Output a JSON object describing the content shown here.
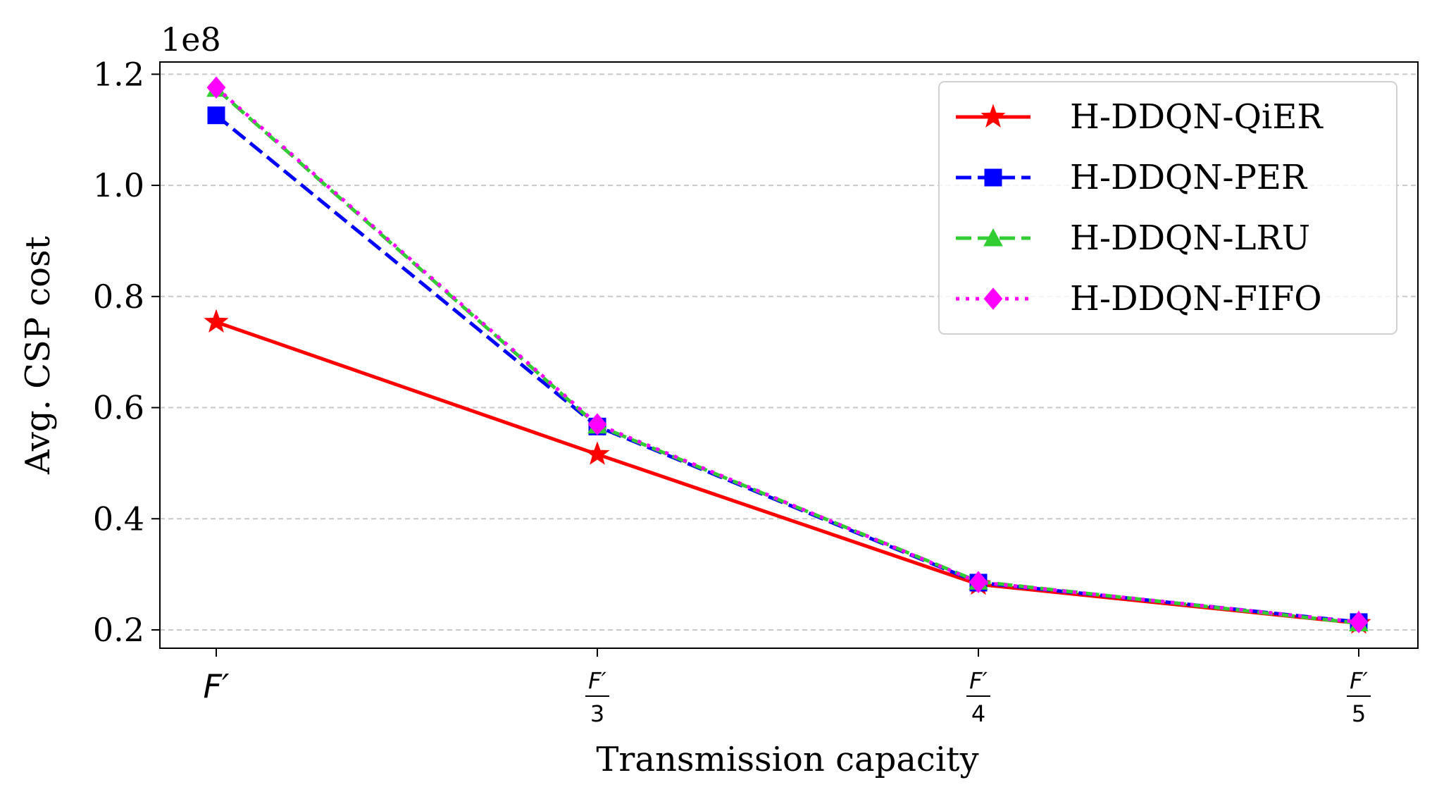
{
  "chart_data": {
    "type": "line",
    "xlabel": "Transmission capacity",
    "ylabel": "Avg. CSP cost",
    "y_offset_label": "1e8",
    "x_ticks": [
      {
        "num": "F′",
        "den": ""
      },
      {
        "num": "F′",
        "den": "3"
      },
      {
        "num": "F′",
        "den": "4"
      },
      {
        "num": "F′",
        "den": "5"
      }
    ],
    "y_ticks": [
      0.2,
      0.4,
      0.6,
      0.8,
      1.0,
      1.2
    ],
    "y_tick_labels": [
      "0.2",
      "0.4",
      "0.6",
      "0.8",
      "1.0",
      "1.2"
    ],
    "ylim": [
      0.167,
      1.222
    ],
    "grid": "horizontal dashed",
    "legend_position": "top-right",
    "series": [
      {
        "name": "H-DDQN-QiER",
        "color": "#ff0000",
        "dash": "solid",
        "marker": "star",
        "values": [
          0.754,
          0.516,
          0.282,
          0.212
        ]
      },
      {
        "name": "H-DDQN-PER",
        "color": "#0000ff",
        "dash": "dashed",
        "marker": "square",
        "values": [
          1.126,
          0.566,
          0.285,
          0.214
        ]
      },
      {
        "name": "H-DDQN-LRU",
        "color": "#32cd32",
        "dash": "dashed",
        "marker": "triangle",
        "values": [
          1.174,
          0.568,
          0.287,
          0.212
        ]
      },
      {
        "name": "H-DDQN-FIFO",
        "color": "#ff00ff",
        "dash": "dotted",
        "marker": "diamond",
        "values": [
          1.176,
          0.57,
          0.286,
          0.214
        ]
      }
    ]
  }
}
